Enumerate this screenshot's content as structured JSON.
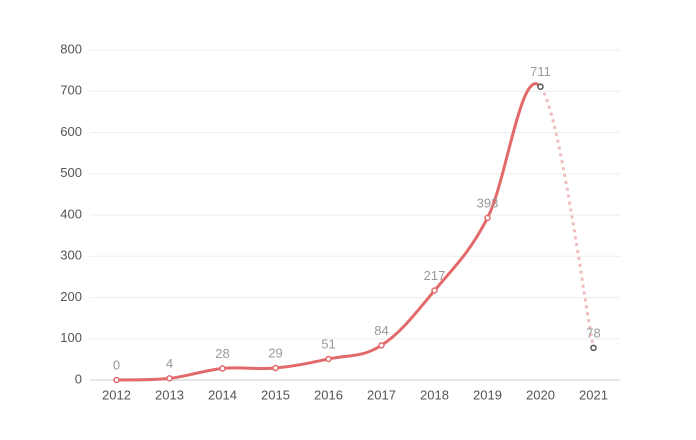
{
  "chart_data": {
    "type": "line",
    "categories": [
      "2012",
      "2013",
      "2014",
      "2015",
      "2016",
      "2017",
      "2018",
      "2019",
      "2020",
      "2021"
    ],
    "values": [
      0,
      4,
      28,
      29,
      51,
      84,
      217,
      393,
      711,
      78
    ],
    "color": "#e36a6a",
    "dashed_last_segment": true,
    "ylim": [
      0,
      800
    ],
    "yticks": [
      0,
      100,
      200,
      300,
      400,
      500,
      600,
      700,
      800
    ],
    "grid": true
  }
}
